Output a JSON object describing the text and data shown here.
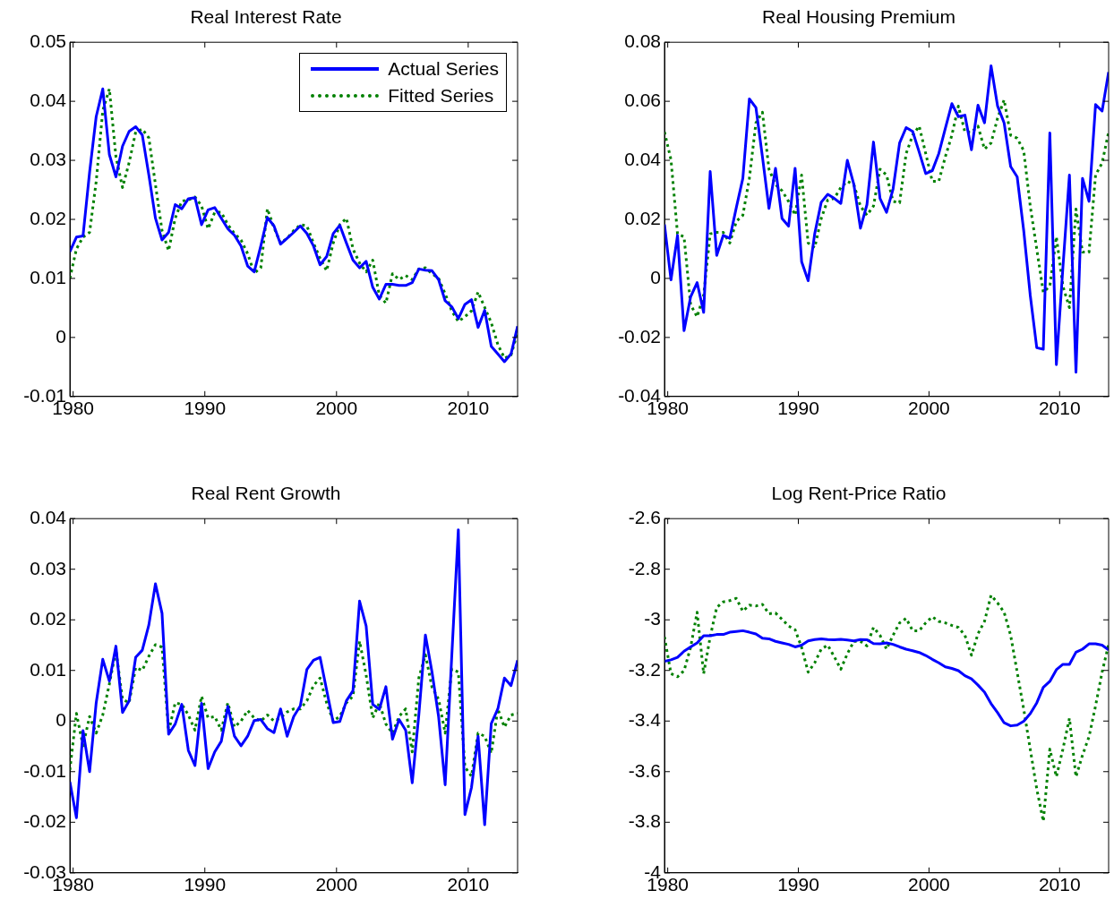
{
  "chart_data": [
    {
      "type": "line",
      "title": "Real Interest Rate",
      "legend": "top right",
      "grid": false,
      "x": [
        1979.75,
        1980.25,
        1980.75,
        1981.25,
        1981.75,
        1982.25,
        1982.75,
        1983.25,
        1983.75,
        1984.25,
        1984.75,
        1985.25,
        1985.75,
        1986.25,
        1986.75,
        1987.25,
        1987.75,
        1988.25,
        1988.75,
        1989.25,
        1989.75,
        1990.25,
        1990.75,
        1991.25,
        1991.75,
        1992.25,
        1992.75,
        1993.25,
        1993.75,
        1994.25,
        1994.75,
        1995.25,
        1995.75,
        1996.25,
        1996.75,
        1997.25,
        1997.75,
        1998.25,
        1998.75,
        1999.25,
        1999.75,
        2000.25,
        2000.75,
        2001.25,
        2001.75,
        2002.25,
        2002.75,
        2003.25,
        2003.75,
        2004.25,
        2004.75,
        2005.25,
        2005.75,
        2006.25,
        2006.75,
        2007.25,
        2007.75,
        2008.25,
        2008.75,
        2009.25,
        2009.75,
        2010.25,
        2010.75,
        2011.25,
        2011.75,
        2012.25,
        2012.75,
        2013.25,
        2013.75
      ],
      "xlim": [
        1979.75,
        2013.75
      ],
      "xticks": [
        1980,
        1990,
        2000,
        2010
      ],
      "ylim": [
        -0.01,
        0.05
      ],
      "yticks": [
        -0.01,
        0,
        0.01,
        0.02,
        0.03,
        0.04,
        0.05
      ],
      "series": [
        {
          "name": "Actual Series",
          "color": "#0000ff",
          "line_style": "solid",
          "values": [
            0.0145,
            0.017,
            0.0172,
            0.028,
            0.0374,
            0.0421,
            0.031,
            0.0272,
            0.0324,
            0.0349,
            0.0357,
            0.0343,
            0.0275,
            0.0202,
            0.0165,
            0.0178,
            0.0225,
            0.0218,
            0.0235,
            0.0237,
            0.0191,
            0.0216,
            0.022,
            0.0202,
            0.0184,
            0.0173,
            0.0155,
            0.0121,
            0.0111,
            0.0155,
            0.0203,
            0.0189,
            0.0158,
            0.0168,
            0.0178,
            0.0189,
            0.0176,
            0.0155,
            0.0123,
            0.0137,
            0.0176,
            0.019,
            0.016,
            0.0131,
            0.0118,
            0.0129,
            0.0085,
            0.0065,
            0.009,
            0.009,
            0.0088,
            0.0088,
            0.0093,
            0.0116,
            0.0114,
            0.0113,
            0.0098,
            0.0062,
            0.0052,
            0.0032,
            0.0056,
            0.0064,
            0.0017,
            0.0046,
            -0.0015,
            -0.0028,
            -0.0041,
            -0.0028,
            0.0019
          ]
        },
        {
          "name": "Fitted Series",
          "color": "#008000",
          "line_style": "dotted",
          "values": [
            0.01,
            0.015,
            0.017,
            0.0178,
            0.0264,
            0.0384,
            0.0421,
            0.0306,
            0.0254,
            0.0296,
            0.0348,
            0.0353,
            0.0338,
            0.0259,
            0.0181,
            0.0147,
            0.0202,
            0.0231,
            0.0233,
            0.0238,
            0.0223,
            0.0184,
            0.0212,
            0.0212,
            0.0191,
            0.0176,
            0.0165,
            0.0142,
            0.0109,
            0.0118,
            0.0218,
            0.0186,
            0.016,
            0.0168,
            0.0181,
            0.0191,
            0.0189,
            0.016,
            0.0134,
            0.0113,
            0.016,
            0.0191,
            0.0202,
            0.015,
            0.0126,
            0.0111,
            0.0131,
            0.0071,
            0.0058,
            0.0108,
            0.0098,
            0.0105,
            0.0098,
            0.0116,
            0.0118,
            0.0108,
            0.01,
            0.0074,
            0.0045,
            0.0027,
            0.0035,
            0.0045,
            0.0077,
            0.0051,
            0.0025,
            -0.0012,
            -0.0035,
            -0.003,
            0.0009
          ]
        }
      ]
    },
    {
      "type": "line",
      "title": "Real Housing Premium",
      "grid": false,
      "x": [
        1979.75,
        1980.25,
        1980.75,
        1981.25,
        1981.75,
        1982.25,
        1982.75,
        1983.25,
        1983.75,
        1984.25,
        1984.75,
        1985.25,
        1985.75,
        1986.25,
        1986.75,
        1987.25,
        1987.75,
        1988.25,
        1988.75,
        1989.25,
        1989.75,
        1990.25,
        1990.75,
        1991.25,
        1991.75,
        1992.25,
        1992.75,
        1993.25,
        1993.75,
        1994.25,
        1994.75,
        1995.25,
        1995.75,
        1996.25,
        1996.75,
        1997.25,
        1997.75,
        1998.25,
        1998.75,
        1999.25,
        1999.75,
        2000.25,
        2000.75,
        2001.25,
        2001.75,
        2002.25,
        2002.75,
        2003.25,
        2003.75,
        2004.25,
        2004.75,
        2005.25,
        2005.75,
        2006.25,
        2006.75,
        2007.25,
        2007.75,
        2008.25,
        2008.75,
        2009.25,
        2009.75,
        2010.25,
        2010.75,
        2011.25,
        2011.75,
        2012.25,
        2012.75,
        2013.25,
        2013.75
      ],
      "xlim": [
        1979.75,
        2013.75
      ],
      "xticks": [
        1980,
        1990,
        2000,
        2010
      ],
      "ylim": [
        -0.04,
        0.08
      ],
      "yticks": [
        -0.04,
        -0.02,
        0,
        0.02,
        0.04,
        0.06,
        0.08
      ],
      "series": [
        {
          "color": "#0000ff",
          "line_style": "solid",
          "values": [
            0.0183,
            -0.0005,
            0.0146,
            -0.0177,
            -0.0063,
            -0.0014,
            -0.0115,
            0.0362,
            0.0078,
            0.0146,
            0.0136,
            0.024,
            0.0339,
            0.0608,
            0.0579,
            0.0412,
            0.0237,
            0.0373,
            0.0203,
            0.0177,
            0.0373,
            0.0057,
            -0.0008,
            0.0151,
            0.0258,
            0.0285,
            0.0271,
            0.0254,
            0.04,
            0.0318,
            0.017,
            0.025,
            0.0462,
            0.0271,
            0.0224,
            0.0303,
            0.0459,
            0.0511,
            0.0498,
            0.0428,
            0.0355,
            0.0365,
            0.0423,
            0.0508,
            0.0592,
            0.0548,
            0.0553,
            0.0436,
            0.0587,
            0.0527,
            0.072,
            0.0584,
            0.0527,
            0.0379,
            0.0344,
            0.0162,
            -0.0057,
            -0.0235,
            -0.024,
            0.0493,
            -0.0292,
            0.0037,
            0.035,
            -0.0318,
            0.0339,
            0.0261,
            0.0589,
            0.0567,
            0.0699
          ]
        },
        {
          "color": "#008000",
          "line_style": "dotted",
          "values": [
            0.0496,
            0.0402,
            0.0151,
            0.0141,
            -0.0089,
            -0.013,
            -0.0057,
            0.0151,
            0.0156,
            0.0156,
            0.012,
            0.0193,
            0.0214,
            0.0339,
            0.0527,
            0.0563,
            0.037,
            0.0318,
            0.0297,
            0.0261,
            0.0214,
            0.035,
            0.012,
            0.0104,
            0.0203,
            0.0266,
            0.0271,
            0.0308,
            0.0329,
            0.0318,
            0.0245,
            0.0214,
            0.0245,
            0.037,
            0.035,
            0.0261,
            0.0256,
            0.0423,
            0.0485,
            0.0516,
            0.0423,
            0.0329,
            0.0329,
            0.0412,
            0.0485,
            0.0584,
            0.0496,
            0.0496,
            0.0516,
            0.0438,
            0.0459,
            0.0543,
            0.0605,
            0.0485,
            0.0475,
            0.0433,
            0.0245,
            0.0099,
            -0.0047,
            -0.0026,
            0.0141,
            -0.0026,
            -0.0099,
            0.0235,
            0.0089,
            0.0089,
            0.035,
            0.0391,
            0.0496
          ]
        }
      ]
    },
    {
      "type": "line",
      "title": "Real Rent Growth",
      "grid": false,
      "x": [
        1979.75,
        1980.25,
        1980.75,
        1981.25,
        1981.75,
        1982.25,
        1982.75,
        1983.25,
        1983.75,
        1984.25,
        1984.75,
        1985.25,
        1985.75,
        1986.25,
        1986.75,
        1987.25,
        1987.75,
        1988.25,
        1988.75,
        1989.25,
        1989.75,
        1990.25,
        1990.75,
        1991.25,
        1991.75,
        1992.25,
        1992.75,
        1993.25,
        1993.75,
        1994.25,
        1994.75,
        1995.25,
        1995.75,
        1996.25,
        1996.75,
        1997.25,
        1997.75,
        1998.25,
        1998.75,
        1999.25,
        1999.75,
        2000.25,
        2000.75,
        2001.25,
        2001.75,
        2002.25,
        2002.75,
        2003.25,
        2003.75,
        2004.25,
        2004.75,
        2005.25,
        2005.75,
        2006.25,
        2006.75,
        2007.25,
        2007.75,
        2008.25,
        2008.75,
        2009.25,
        2009.75,
        2010.25,
        2010.75,
        2011.25,
        2011.75,
        2012.25,
        2012.75,
        2013.25,
        2013.75
      ],
      "xlim": [
        1979.75,
        2013.75
      ],
      "xticks": [
        1980,
        1990,
        2000,
        2010
      ],
      "ylim": [
        -0.03,
        0.04
      ],
      "yticks": [
        -0.03,
        -0.02,
        -0.01,
        0,
        0.01,
        0.02,
        0.03,
        0.04
      ],
      "series": [
        {
          "color": "#0000ff",
          "line_style": "solid",
          "values": [
            -0.012,
            -0.0191,
            -0.0019,
            -0.01,
            0.0036,
            0.0122,
            0.0079,
            0.0148,
            0.0017,
            0.004,
            0.0126,
            0.014,
            0.019,
            0.0271,
            0.0213,
            -0.0026,
            -0.0006,
            0.0033,
            -0.0058,
            -0.0088,
            0.0035,
            -0.0094,
            -0.0061,
            -0.004,
            0.0029,
            -0.003,
            -0.0049,
            -0.003,
            0.0001,
            0.0003,
            -0.0015,
            -0.0023,
            0.0024,
            -0.003,
            0.0009,
            0.003,
            0.0102,
            0.012,
            0.0126,
            0.0061,
            -0.0003,
            -0.0001,
            0.004,
            0.006,
            0.0237,
            0.0188,
            0.0033,
            0.0023,
            0.0068,
            -0.0036,
            0.0003,
            -0.0018,
            -0.0122,
            0.0012,
            0.017,
            0.0097,
            0.0009,
            -0.0126,
            0.0128,
            0.0378,
            -0.0185,
            -0.0131,
            -0.003,
            -0.0205,
            -0.0005,
            0.0024,
            0.0085,
            0.007,
            0.012
          ]
        },
        {
          "color": "#008000",
          "line_style": "dotted",
          "values": [
            -0.0097,
            0.0015,
            -0.0049,
            0.0009,
            -0.0024,
            0.0012,
            0.0073,
            0.014,
            0.0043,
            0.0036,
            0.0106,
            0.01,
            0.0128,
            0.0151,
            0.0146,
            -0.0021,
            0.0036,
            0.0033,
            0.0012,
            -0.0018,
            0.0049,
            0.0006,
            0.0009,
            -0.0018,
            0.0036,
            -0.0012,
            0,
            0.0021,
            0.0006,
            0,
            0.0012,
            0,
            0.0006,
            0.0018,
            0.0024,
            0.0024,
            0.004,
            0.007,
            0.0085,
            0.0036,
            0,
            0.0009,
            0.0036,
            0.0049,
            0.0158,
            0.0091,
            0.0006,
            0.0036,
            -0.0006,
            -0.0024,
            0.0009,
            0.0024,
            -0.0061,
            0.0085,
            0.0131,
            0.0067,
            0.0043,
            -0.0024,
            0.0103,
            0.0097,
            -0.0091,
            -0.0109,
            -0.0024,
            -0.003,
            -0.0064,
            0.0024,
            -0.0012,
            0.0012,
            0.0015
          ]
        }
      ]
    },
    {
      "type": "line",
      "title": "Log Rent-Price Ratio",
      "grid": false,
      "x": [
        1979.75,
        1980.25,
        1980.75,
        1981.25,
        1981.75,
        1982.25,
        1982.75,
        1983.25,
        1983.75,
        1984.25,
        1984.75,
        1985.25,
        1985.75,
        1986.25,
        1986.75,
        1987.25,
        1987.75,
        1988.25,
        1988.75,
        1989.25,
        1989.75,
        1990.25,
        1990.75,
        1991.25,
        1991.75,
        1992.25,
        1992.75,
        1993.25,
        1993.75,
        1994.25,
        1994.75,
        1995.25,
        1995.75,
        1996.25,
        1996.75,
        1997.25,
        1997.75,
        1998.25,
        1998.75,
        1999.25,
        1999.75,
        2000.25,
        2000.75,
        2001.25,
        2001.75,
        2002.25,
        2002.75,
        2003.25,
        2003.75,
        2004.25,
        2004.75,
        2005.25,
        2005.75,
        2006.25,
        2006.75,
        2007.25,
        2007.75,
        2008.25,
        2008.75,
        2009.25,
        2009.75,
        2010.25,
        2010.75,
        2011.25,
        2011.75,
        2012.25,
        2012.75,
        2013.25,
        2013.75
      ],
      "xlim": [
        1979.75,
        2013.75
      ],
      "xticks": [
        1980,
        1990,
        2000,
        2010
      ],
      "ylim": [
        -4,
        -2.6
      ],
      "yticks": [
        -4,
        -3.8,
        -3.6,
        -3.4,
        -3.2,
        -3,
        -2.8,
        -2.6
      ],
      "series": [
        {
          "color": "#0000ff",
          "line_style": "solid",
          "values": [
            -3.164,
            -3.158,
            -3.148,
            -3.124,
            -3.107,
            -3.091,
            -3.063,
            -3.063,
            -3.058,
            -3.058,
            -3.049,
            -3.046,
            -3.043,
            -3.049,
            -3.056,
            -3.073,
            -3.075,
            -3.085,
            -3.091,
            -3.097,
            -3.107,
            -3.1,
            -3.083,
            -3.078,
            -3.075,
            -3.078,
            -3.079,
            -3.077,
            -3.08,
            -3.083,
            -3.078,
            -3.079,
            -3.094,
            -3.095,
            -3.091,
            -3.097,
            -3.107,
            -3.116,
            -3.122,
            -3.129,
            -3.141,
            -3.156,
            -3.17,
            -3.186,
            -3.192,
            -3.201,
            -3.221,
            -3.233,
            -3.258,
            -3.286,
            -3.331,
            -3.367,
            -3.407,
            -3.419,
            -3.416,
            -3.401,
            -3.371,
            -3.328,
            -3.267,
            -3.243,
            -3.197,
            -3.176,
            -3.176,
            -3.128,
            -3.116,
            -3.095,
            -3.095,
            -3.1,
            -3.119
          ]
        },
        {
          "color": "#008000",
          "line_style": "dotted",
          "values": [
            -3.067,
            -3.213,
            -3.225,
            -3.201,
            -3.109,
            -2.97,
            -3.213,
            -3.067,
            -2.951,
            -2.929,
            -2.924,
            -2.915,
            -2.966,
            -2.942,
            -2.945,
            -2.939,
            -2.976,
            -2.973,
            -2.998,
            -3.024,
            -3.039,
            -3.109,
            -3.207,
            -3.17,
            -3.116,
            -3.1,
            -3.146,
            -3.195,
            -3.134,
            -3.085,
            -3.085,
            -3.103,
            -3.03,
            -3.061,
            -3.116,
            -3.061,
            -3.012,
            -2.994,
            -3.043,
            -3.043,
            -3.012,
            -2.988,
            -3.006,
            -3.012,
            -3.022,
            -3.03,
            -3.061,
            -3.14,
            -3.055,
            -3.006,
            -2.903,
            -2.933,
            -2.97,
            -3.061,
            -3.207,
            -3.353,
            -3.511,
            -3.669,
            -3.796,
            -3.511,
            -3.62,
            -3.511,
            -3.389,
            -3.62,
            -3.535,
            -3.462,
            -3.34,
            -3.207,
            -3.097
          ]
        }
      ]
    }
  ]
}
